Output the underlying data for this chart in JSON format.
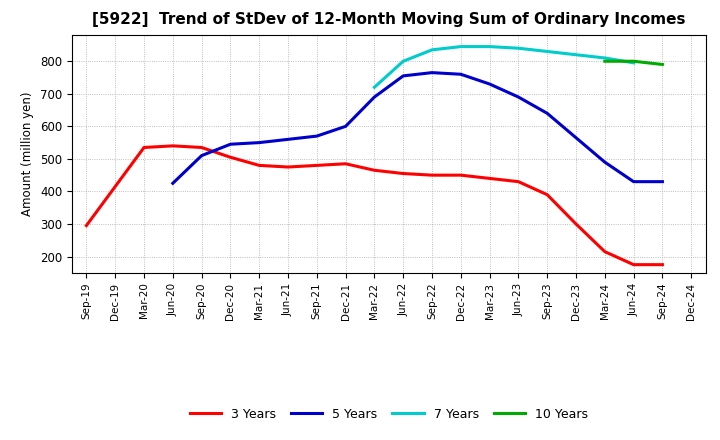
{
  "title": "[5922]  Trend of StDev of 12-Month Moving Sum of Ordinary Incomes",
  "ylabel": "Amount (million yen)",
  "xlabels": [
    "Sep-19",
    "Dec-19",
    "Mar-20",
    "Jun-20",
    "Sep-20",
    "Dec-20",
    "Mar-21",
    "Jun-21",
    "Sep-21",
    "Dec-21",
    "Mar-22",
    "Jun-22",
    "Sep-22",
    "Dec-22",
    "Mar-23",
    "Jun-23",
    "Sep-23",
    "Dec-23",
    "Mar-24",
    "Jun-24",
    "Sep-24",
    "Dec-24"
  ],
  "series": {
    "3 Years": {
      "color": "#ff0000",
      "data": [
        295,
        415,
        535,
        540,
        535,
        505,
        480,
        475,
        480,
        485,
        465,
        455,
        450,
        450,
        440,
        430,
        390,
        300,
        215,
        175,
        175,
        null
      ]
    },
    "5 Years": {
      "color": "#0000cc",
      "data": [
        null,
        null,
        null,
        425,
        510,
        545,
        550,
        560,
        570,
        600,
        690,
        755,
        765,
        760,
        730,
        690,
        640,
        565,
        490,
        430,
        430,
        null
      ]
    },
    "7 Years": {
      "color": "#00cccc",
      "data": [
        null,
        null,
        null,
        null,
        null,
        null,
        null,
        null,
        null,
        null,
        720,
        800,
        835,
        845,
        845,
        840,
        830,
        820,
        810,
        795,
        null,
        null
      ]
    },
    "10 Years": {
      "color": "#00aa00",
      "data": [
        null,
        null,
        null,
        null,
        null,
        null,
        null,
        null,
        null,
        null,
        null,
        null,
        null,
        null,
        null,
        null,
        null,
        null,
        800,
        800,
        790,
        null
      ]
    }
  },
  "ylim": [
    150,
    880
  ],
  "yticks": [
    200,
    300,
    400,
    500,
    600,
    700,
    800
  ],
  "background_color": "#ffffff",
  "grid_color": "#aaaaaa",
  "title_fontsize": 11,
  "legend_entries": [
    "3 Years",
    "5 Years",
    "7 Years",
    "10 Years"
  ]
}
